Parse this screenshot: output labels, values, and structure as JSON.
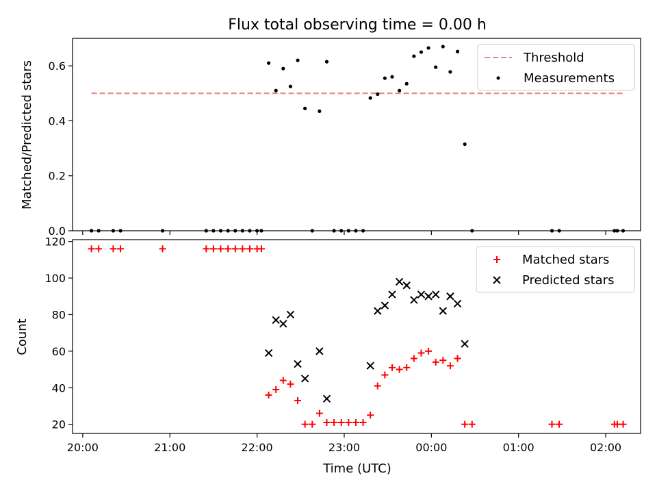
{
  "chart_data": [
    {
      "type": "scatter",
      "title": "Flux total observing time = 0.00 h",
      "xlabel": "",
      "ylabel": "Matched/Predicted stars",
      "xlim": [
        "19:53",
        "02:24"
      ],
      "ylim": [
        0,
        0.7
      ],
      "yticks": [
        "0.0",
        "0.2",
        "0.4",
        "0.6"
      ],
      "grid": false,
      "legend_position": "top-right",
      "colors": {
        "threshold": "#f08080",
        "measurements": "#000000"
      },
      "series": [
        {
          "name": "Threshold",
          "style": "dashed-line",
          "x": [
            "20:06",
            "02:12"
          ],
          "y": [
            0.5,
            0.5
          ]
        },
        {
          "name": "Measurements",
          "style": "dot",
          "x": [
            "20:06",
            "20:11",
            "20:21",
            "20:26",
            "20:55",
            "21:25",
            "21:30",
            "21:35",
            "21:40",
            "21:45",
            "21:50",
            "21:55",
            "22:00",
            "22:03",
            "22:08",
            "22:13",
            "22:18",
            "22:23",
            "22:28",
            "22:33",
            "22:38",
            "22:43",
            "22:48",
            "22:53",
            "22:58",
            "23:03",
            "23:08",
            "23:13",
            "23:18",
            "23:23",
            "23:28",
            "23:33",
            "23:38",
            "23:43",
            "23:48",
            "23:53",
            "23:58",
            "00:03",
            "00:08",
            "00:13",
            "00:18",
            "00:23",
            "00:28",
            "01:23",
            "01:28",
            "02:06",
            "02:08",
            "02:12"
          ],
          "y": [
            0,
            0,
            0,
            0,
            0,
            0,
            0,
            0,
            0,
            0,
            0,
            0,
            0,
            0,
            0.61,
            0.51,
            0.59,
            0.525,
            0.62,
            0.445,
            0,
            0.435,
            0.615,
            0,
            0,
            0,
            0,
            0,
            0.483,
            0.497,
            0.555,
            0.56,
            0.51,
            0.535,
            0.635,
            0.65,
            0.665,
            0.595,
            0.67,
            0.578,
            0.652,
            0.315,
            0,
            0,
            0,
            0,
            0,
            0
          ]
        }
      ]
    },
    {
      "type": "scatter",
      "title": "",
      "xlabel": "Time (UTC)",
      "ylabel": "Count",
      "xlim": [
        "19:53",
        "02:24"
      ],
      "ylim": [
        15,
        121
      ],
      "yticks": [
        "20",
        "40",
        "60",
        "80",
        "100",
        "120"
      ],
      "xticks": [
        "20:00",
        "21:00",
        "22:00",
        "23:00",
        "00:00",
        "01:00",
        "02:00"
      ],
      "grid": false,
      "legend_position": "top-right",
      "colors": {
        "matched": "#ff0000",
        "predicted": "#000000"
      },
      "series": [
        {
          "name": "Matched stars",
          "marker": "plus",
          "x": [
            "20:06",
            "20:11",
            "20:21",
            "20:26",
            "20:55",
            "21:25",
            "21:30",
            "21:35",
            "21:40",
            "21:45",
            "21:50",
            "21:55",
            "22:00",
            "22:03",
            "22:08",
            "22:13",
            "22:18",
            "22:23",
            "22:28",
            "22:33",
            "22:38",
            "22:43",
            "22:48",
            "22:53",
            "22:58",
            "23:03",
            "23:08",
            "23:13",
            "23:18",
            "23:23",
            "23:28",
            "23:33",
            "23:38",
            "23:43",
            "23:48",
            "23:53",
            "23:58",
            "00:03",
            "00:08",
            "00:13",
            "00:18",
            "00:23",
            "00:28",
            "01:23",
            "01:28",
            "02:06",
            "02:08",
            "02:12"
          ],
          "y": [
            116,
            116,
            116,
            116,
            116,
            116,
            116,
            116,
            116,
            116,
            116,
            116,
            116,
            116,
            36,
            39,
            44,
            42,
            33,
            20,
            20,
            26,
            21,
            21,
            21,
            21,
            21,
            21,
            25,
            41,
            47,
            51,
            50,
            51,
            56,
            59,
            60,
            54,
            55,
            52,
            56,
            20,
            20,
            20,
            20,
            20,
            20,
            20
          ]
        },
        {
          "name": "Predicted stars",
          "marker": "x",
          "x": [
            "22:08",
            "22:13",
            "22:18",
            "22:23",
            "22:28",
            "22:33",
            "22:43",
            "22:48",
            "23:18",
            "23:23",
            "23:28",
            "23:33",
            "23:38",
            "23:43",
            "23:48",
            "23:53",
            "23:58",
            "00:03",
            "00:08",
            "00:13",
            "00:18",
            "00:23"
          ],
          "y": [
            59,
            77,
            75,
            80,
            53,
            45,
            60,
            34,
            52,
            82,
            85,
            91,
            98,
            96,
            88,
            91,
            90,
            91,
            82,
            90,
            86,
            64
          ]
        }
      ]
    }
  ]
}
